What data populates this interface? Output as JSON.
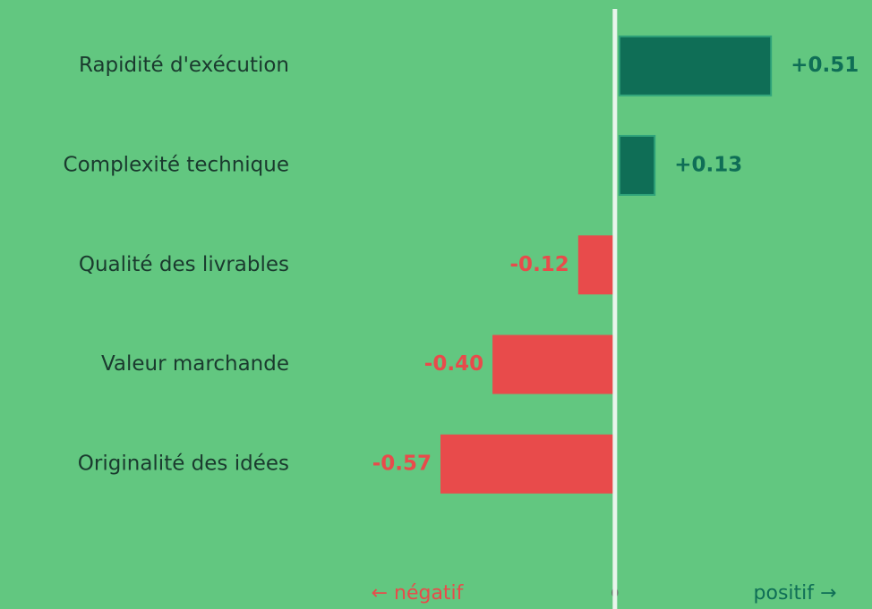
{
  "chart_data": {
    "type": "diverging_bar",
    "categories": [
      "Rapidité d'exécution",
      "Complexité technique",
      "Qualité des livrables",
      "Valeur marchande",
      "Originalité des idées"
    ],
    "values": [
      0.51,
      0.13,
      -0.12,
      -0.4,
      -0.57
    ],
    "value_labels": [
      "+0.51",
      "+0.13",
      "-0.12",
      "-0.40",
      "-0.57"
    ],
    "positive_color": "#0f6e56",
    "negative_color": "#e84b4b",
    "xlim": [
      -1,
      0.84
    ],
    "xticks": [
      0
    ],
    "left_annotation": "← négatif",
    "right_annotation": "positif →"
  }
}
